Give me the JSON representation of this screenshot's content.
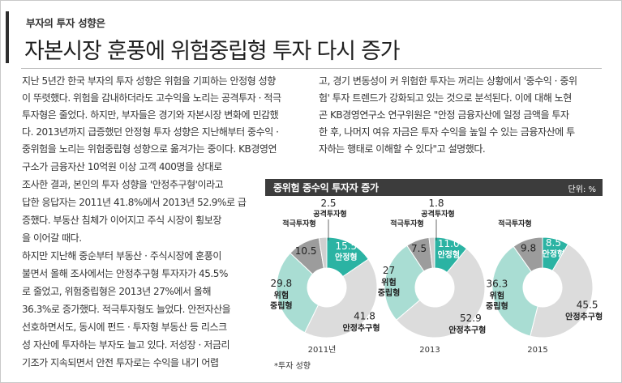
{
  "kicker": "부자의 투자 성향은",
  "headline": "자본시장 훈풍에 위험중립형 투자 다시 증가",
  "body_full": [
    "지난 5년간 한국 부자의 투자 성향은 위험을 기피하는 안정형 성향",
    "이 뚜렷했다. 위험을 감내하더라도 고수익을 노리는 공격투자 · 적극",
    "투자형은 줄었다. 하지만, 부자들은 경기와 자본시장 변화에 민감했",
    "다. 2013년까지 급증했던 안정형 투자 성향은 지난해부터 중수익 ·",
    "중위험을 노리는 위험중립형 성향으로 옮겨가는 중이다. KB경영연"
  ],
  "body_left": [
    "구소가 금융자산 10억원 이상 고객 400명을 상대로",
    "조사한 결과, 본인의 투자 성향을 '안정추구형'이라고",
    "답한 응답자는 2011년 41.8%에서 2013년 52.9%로 급",
    "증했다. 부동산 침체가 이어지고 주식 시장이 횡보장",
    "을 이어갈 때다.",
    "하지만 지난해 중순부터 부동산 · 주식시장에 훈풍이",
    "불면서 올해 조사에서는 안정추구형 투자자가 45.5%",
    "로 줄었고, 위험중립형은 2013년 27%에서 올해",
    "36.3%로 증가했다. 적극투자형도 늘었다. 안전자산을",
    "선호하면서도, 동시에 펀드 · 투자형 부동산 등 리스크",
    "성 자산에 투자하는 부자도 늘고 있다. 저성장 · 저금리",
    "기조가 지속되면서 안전 투자로는 수익을 내기 어렵"
  ],
  "body_right": [
    "고, 경기 변동성이 커 위험한 투자는 꺼리는 상황에서 '중수익 · 중위",
    "험' 투자 트렌드가 강화되고 있는 것으로 분석된다. 이에 대해 노현",
    "곤 KB경영연구소 연구위원은 \"안정 금융자산에 일정 금액을 투자",
    "한 후, 나머지 여유 자금은 투자 수익을 높일 수 있는 금융자산에 투",
    "자하는 행태로 이해할 수 있다\"고 설명했다."
  ],
  "chart_title": "중위험 중수익 투자자 증가",
  "chart_unit": "단위: %",
  "chart_note": "*투자 성향",
  "chart_data": {
    "type": "pie",
    "title": "중위험 중수익 투자자 증가",
    "unit": "단위: %",
    "categories": [
      "안정형",
      "안정추구형",
      "위험중립형",
      "적극투자형",
      "공격투자형"
    ],
    "colors": {
      "안정형": "#2bb3a3",
      "안정추구형": "#dcdcdc",
      "위험중립형": "#a9ddd3",
      "적극투자형": "#9c9c9c",
      "공격투자형": "#cfcfcf"
    },
    "charts": [
      {
        "year": "2011년",
        "values": {
          "안정형": 15.5,
          "안정추구형": 41.8,
          "위험중립형": 29.8,
          "적극투자형": 10.5,
          "공격투자형": 2.5
        }
      },
      {
        "year": "2013",
        "values": {
          "안정형": 11.0,
          "안정추구형": 52.9,
          "위험중립형": 27.0,
          "적극투자형": 7.5,
          "공격투자형": 1.8
        }
      },
      {
        "year": "2015",
        "values": {
          "안정형": 8.5,
          "안정추구형": 45.5,
          "위험중립형": 36.3,
          "적극투자형": 9.8
        }
      }
    ]
  }
}
